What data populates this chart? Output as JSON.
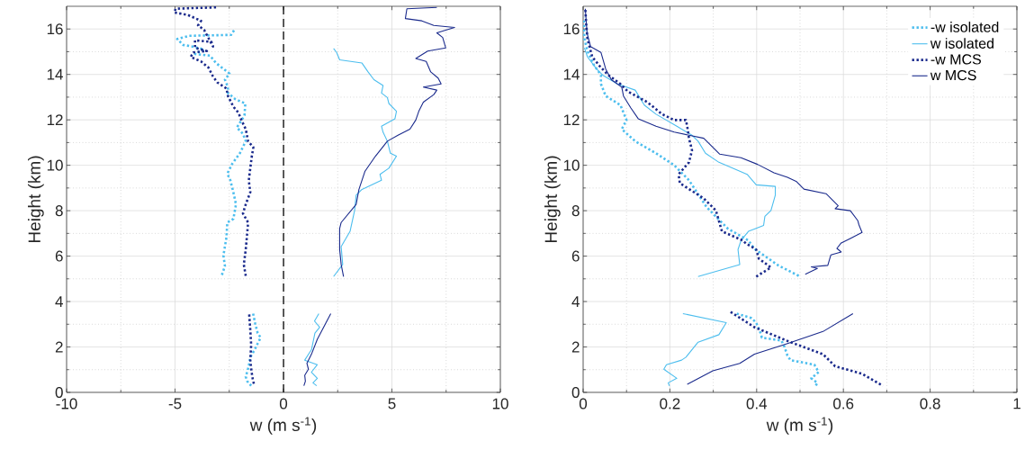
{
  "chart_data": [
    {
      "type": "line",
      "xlabel": "w (m s$^{-1}$)",
      "ylabel": "Height (km)",
      "xlim": [
        -10,
        10
      ],
      "ylim": [
        0,
        17
      ],
      "xticks": [
        -10,
        -5,
        0,
        5,
        10
      ],
      "yticks": [
        0,
        2,
        4,
        6,
        8,
        10,
        12,
        14,
        16
      ],
      "grid": true,
      "legend": false,
      "ref_lines": [
        {
          "axis": "x",
          "value": 0,
          "color": "#000000",
          "line_style": "dashed"
        }
      ],
      "series": [
        {
          "color": "#4dbeee",
          "line_style": "dotted",
          "x": [
            -1.4,
            -1.3,
            -1.19,
            -1.05,
            -1.19,
            -1.33,
            -1.53,
            -1.6,
            -1.74,
            -1.67,
            -1.49,
            null,
            -2.84,
            -2.7,
            -2.77,
            -2.63,
            -2.59,
            -2.31,
            -2.19,
            -2.31,
            -2.45,
            -2.59,
            -2.36,
            -2.01,
            -1.74,
            -1.87,
            -2.15,
            -1.8,
            -1.76,
            -2.22,
            -2.56,
            -2.56,
            -2.7,
            -2.49,
            -3.11,
            -3.39,
            -4.08,
            -3.66,
            -4.21,
            -4.63,
            -4.9,
            -4.35,
            -2.42,
            -2.22
          ],
          "values": [
            3.47,
            3.01,
            2.61,
            2.41,
            2.15,
            1.88,
            1.55,
            1.15,
            0.69,
            0.49,
            0.29,
            null,
            5.17,
            5.56,
            6.03,
            6.82,
            7.48,
            7.64,
            8.28,
            8.81,
            9.34,
            9.63,
            10.07,
            10.53,
            11.06,
            11.39,
            11.66,
            12.19,
            12.72,
            12.91,
            13.18,
            13.44,
            13.77,
            14.04,
            14.5,
            14.83,
            14.9,
            15.1,
            15.23,
            15.3,
            15.56,
            15.7,
            15.74,
            16.03
          ]
        },
        {
          "color": "#4dbeee",
          "line_style": "solid",
          "x": [
            1.63,
            1.43,
            1.67,
            1.45,
            1.29,
            0.98,
            1.56,
            1.29,
            1.56,
            1.36,
            1.53,
            null,
            2.31,
            2.73,
            2.66,
            3.07,
            3.28,
            3.35,
            3.62,
            4.52,
            4.45,
            4.86,
            5.21,
            4.93,
            4.79,
            4.59,
            4.52,
            5.14,
            5.21,
            4.86,
            4.79,
            4.52,
            4.59,
            4.17,
            3.9,
            3.62,
            2.59,
            2.45,
            2.31
          ],
          "values": [
            3.47,
            3.14,
            2.87,
            2.61,
            1.88,
            1.42,
            1.22,
            0.89,
            0.62,
            0.42,
            0.29,
            null,
            5.1,
            5.63,
            6.42,
            7.09,
            8.01,
            8.68,
            8.94,
            9.34,
            9.6,
            9.87,
            10.4,
            10.53,
            11.06,
            11.46,
            11.72,
            12.05,
            12.38,
            12.72,
            12.98,
            13.18,
            13.51,
            13.77,
            14.11,
            14.5,
            14.64,
            14.97,
            15.14
          ]
        },
        {
          "color": "#1a2a8c",
          "line_style": "dotted",
          "x": [
            -1.58,
            -1.53,
            -1.49,
            -1.53,
            -1.47,
            -1.4,
            -1.33,
            null,
            -1.74,
            -1.83,
            -1.74,
            -1.63,
            -1.87,
            -1.74,
            -1.53,
            -1.6,
            -1.46,
            -1.39,
            -1.63,
            -1.74,
            -1.94,
            -2.08,
            -2.31,
            -2.56,
            -2.63,
            -3.04,
            -3.25,
            -3.46,
            -3.8,
            -4.28,
            -4.15,
            -3.53,
            -4.08,
            -4.08,
            -3.32,
            -3.25,
            -3.66,
            -3.94,
            -3.8,
            -4.42,
            -5.04,
            -4.97,
            -4.21,
            -3.1
          ],
          "values": [
            3.43,
            2.74,
            2.08,
            1.42,
            0.89,
            0.49,
            0.29,
            null,
            5.13,
            5.63,
            6.29,
            7.48,
            7.88,
            8.28,
            8.81,
            9.34,
            10.4,
            10.79,
            11.06,
            11.59,
            11.99,
            12.32,
            12.58,
            13.05,
            13.38,
            13.64,
            13.91,
            14.3,
            14.57,
            14.77,
            14.97,
            15.03,
            15.17,
            15.5,
            15.43,
            15.23,
            15.96,
            16.16,
            16.36,
            16.62,
            16.73,
            16.89,
            16.92,
            16.95
          ]
        },
        {
          "color": "#1a2a8c",
          "line_style": "solid",
          "x": [
            2.18,
            1.56,
            1.29,
            1.08,
            1.15,
            0.98,
            1.01,
            0.94,
            null,
            2.77,
            2.66,
            2.59,
            2.59,
            2.66,
            3.35,
            3.48,
            3.76,
            4.24,
            4.79,
            5.28,
            5.83,
            6.1,
            6.24,
            6.45,
            6.93,
            7.07,
            6.45,
            7.27,
            7.13,
            6.79,
            6.58,
            6.1,
            6.65,
            7.48,
            7.34,
            7.07,
            7.89,
            6.93,
            6.38,
            5.62,
            5.69,
            7.07
          ],
          "values": [
            3.47,
            2.34,
            1.68,
            1.28,
            1.02,
            0.75,
            0.49,
            0.29,
            null,
            5.1,
            5.63,
            6.29,
            7.22,
            7.48,
            8.28,
            8.94,
            9.74,
            10.4,
            11.06,
            11.32,
            11.59,
            11.99,
            12.38,
            12.78,
            13.11,
            13.31,
            13.44,
            13.58,
            13.84,
            14.11,
            14.57,
            14.7,
            15.03,
            15.17,
            15.63,
            15.83,
            16.07,
            16.16,
            16.36,
            16.46,
            16.89,
            16.95
          ]
        }
      ]
    },
    {
      "type": "line",
      "xlabel": "w (m s$^{-1}$)",
      "ylabel": "Height (km)",
      "xlim": [
        0,
        1
      ],
      "ylim": [
        0,
        17
      ],
      "xticks": [
        0,
        0.2,
        0.4,
        0.6,
        0.8,
        1
      ],
      "yticks": [
        0,
        2,
        4,
        6,
        8,
        10,
        12,
        14,
        16
      ],
      "grid": true,
      "legend": "top right",
      "series": [
        {
          "name": "-w isolated",
          "color": "#4dbeee",
          "line_style": "dotted",
          "x": [
            0.354,
            0.388,
            0.399,
            0.409,
            0.412,
            0.457,
            0.464,
            0.471,
            0.478,
            0.533,
            0.543,
            0.526,
            0.54,
            0.536,
            null,
            0.497,
            0.45,
            0.395,
            0.381,
            0.333,
            0.285,
            0.244,
            0.21,
            0.168,
            0.12,
            0.089,
            0.1,
            0.086,
            0.052,
            0.041,
            0.041,
            0.024,
            0.01,
            0.003,
            0.002,
            0.002
          ],
          "values": [
            3.47,
            3.27,
            3.07,
            2.61,
            2.41,
            2.28,
            2.01,
            1.62,
            1.42,
            1.22,
            0.89,
            0.62,
            0.42,
            0.29,
            null,
            5.13,
            5.59,
            6.32,
            6.69,
            7.22,
            8.15,
            9.34,
            10.0,
            10.53,
            11.06,
            11.59,
            11.99,
            12.65,
            13.05,
            13.58,
            13.97,
            14.44,
            15.03,
            15.56,
            15.96,
            16.49
          ]
        },
        {
          "name": "w isolated",
          "color": "#4dbeee",
          "line_style": "solid",
          "x": [
            0.23,
            0.33,
            0.313,
            0.265,
            0.237,
            0.227,
            0.192,
            0.186,
            0.216,
            0.196,
            0.199,
            null,
            0.265,
            0.361,
            0.357,
            0.364,
            0.381,
            0.416,
            0.419,
            0.433,
            0.443,
            0.443,
            0.399,
            0.378,
            0.354,
            0.313,
            0.282,
            0.265,
            0.251,
            0.216,
            0.168,
            0.141,
            0.12,
            0.079,
            0.045,
            0.031,
            0.01,
            0.003
          ],
          "values": [
            3.47,
            3.07,
            2.54,
            2.21,
            1.55,
            1.42,
            1.22,
            1.02,
            0.62,
            0.42,
            0.29,
            null,
            5.1,
            5.63,
            6.29,
            6.69,
            7.09,
            7.35,
            7.75,
            8.01,
            8.68,
            9.07,
            9.14,
            9.6,
            9.8,
            10.13,
            10.53,
            11.06,
            11.32,
            11.72,
            12.25,
            12.65,
            13.31,
            13.58,
            13.97,
            14.24,
            14.77,
            15.17
          ]
        },
        {
          "name": "-w MCS",
          "color": "#1a2a8c",
          "line_style": "dotted",
          "x": [
            0.34,
            0.395,
            0.478,
            0.553,
            0.581,
            0.643,
            0.691,
            null,
            0.399,
            0.416,
            0.433,
            0.405,
            0.399,
            0.375,
            0.368,
            0.32,
            0.306,
            0.278,
            0.223,
            0.22,
            0.244,
            0.251,
            0.244,
            0.241,
            0.237,
            0.21,
            0.182,
            0.148,
            0.103,
            0.086,
            0.058,
            0.038,
            0.021,
            0.01,
            0.007,
            0.005
          ],
          "values": [
            3.54,
            2.87,
            2.21,
            1.68,
            1.15,
            0.82,
            0.29,
            null,
            5.1,
            5.3,
            5.5,
            5.89,
            6.29,
            6.56,
            6.69,
            7.09,
            8.01,
            8.54,
            9.21,
            9.6,
            10.13,
            10.66,
            11.19,
            11.59,
            11.99,
            11.99,
            12.25,
            12.78,
            13.25,
            13.58,
            13.97,
            14.37,
            14.77,
            15.56,
            16.23,
            16.89
          ]
        },
        {
          "name": "w MCS",
          "color": "#1a2a8c",
          "line_style": "solid",
          "x": [
            0.622,
            0.553,
            0.471,
            0.395,
            0.361,
            0.299,
            0.24,
            null,
            0.512,
            0.54,
            0.526,
            0.564,
            0.571,
            0.595,
            0.585,
            0.595,
            0.616,
            0.643,
            0.636,
            0.633,
            0.616,
            0.581,
            0.588,
            0.56,
            0.509,
            0.492,
            0.471,
            0.44,
            0.402,
            0.364,
            0.315,
            0.278,
            0.21,
            0.168,
            0.127,
            0.11,
            0.093,
            0.089,
            0.065,
            0.052,
            0.041,
            0.017,
            0.009,
            0.005
          ],
          "values": [
            3.47,
            2.68,
            2.15,
            1.68,
            1.28,
            0.95,
            0.36,
            null,
            5.2,
            5.46,
            5.53,
            5.59,
            6.05,
            6.18,
            6.34,
            6.58,
            6.78,
            7.04,
            7.37,
            7.57,
            8.0,
            8.09,
            8.22,
            8.75,
            8.95,
            9.28,
            9.47,
            9.67,
            10.04,
            10.33,
            10.49,
            11.19,
            11.46,
            11.72,
            12.05,
            12.52,
            13.05,
            13.44,
            13.77,
            14.24,
            14.97,
            15.23,
            15.83,
            16.89
          ]
        }
      ]
    }
  ]
}
